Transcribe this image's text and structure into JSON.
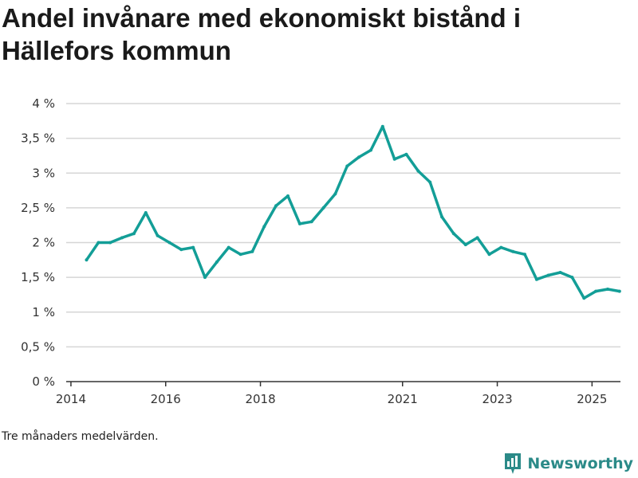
{
  "chart_data": {
    "type": "line",
    "title": "Andel invånare med ekonomiskt bistånd i Hällefors kommun",
    "xlabel": "",
    "ylabel": "",
    "ylim": [
      0,
      4
    ],
    "xlim": [
      2013.9,
      2025.6
    ],
    "yticks": [
      0,
      0.5,
      1,
      1.5,
      2,
      2.5,
      3,
      3.5,
      4
    ],
    "ytick_labels": [
      "0 %",
      "0,5 %",
      "1 %",
      "1,5 %",
      "2 %",
      "2,5 %",
      "3 %",
      "3,5 %",
      "4 %"
    ],
    "xticks": [
      2014,
      2016,
      2018,
      2021,
      2023,
      2025
    ],
    "xtick_labels": [
      "2014",
      "2016",
      "2018",
      "2021",
      "2023",
      "2025"
    ],
    "grid": true,
    "series": [
      {
        "name": "Andel invånare med ekonomiskt bistånd",
        "color": "#139e97",
        "x": [
          2014.33,
          2014.58,
          2014.83,
          2015.08,
          2015.33,
          2015.58,
          2015.83,
          2016.08,
          2016.33,
          2016.58,
          2016.83,
          2017.08,
          2017.33,
          2017.58,
          2017.83,
          2018.08,
          2018.33,
          2018.58,
          2018.83,
          2019.08,
          2019.33,
          2019.58,
          2019.83,
          2020.08,
          2020.33,
          2020.58,
          2020.83,
          2021.08,
          2021.33,
          2021.58,
          2021.83,
          2022.08,
          2022.33,
          2022.58,
          2022.83,
          2023.08,
          2023.33,
          2023.58,
          2023.83,
          2024.08,
          2024.33,
          2024.58,
          2024.83,
          2025.08,
          2025.33,
          2025.58
        ],
        "values": [
          1.75,
          2.0,
          2.0,
          2.07,
          2.13,
          2.43,
          2.1,
          2.0,
          1.9,
          1.93,
          1.5,
          1.72,
          1.93,
          1.83,
          1.87,
          2.23,
          2.53,
          2.67,
          2.27,
          2.3,
          2.5,
          2.7,
          3.1,
          3.23,
          3.33,
          3.67,
          3.2,
          3.27,
          3.03,
          2.87,
          2.37,
          2.13,
          1.97,
          2.07,
          1.83,
          1.93,
          1.87,
          1.83,
          1.47,
          1.53,
          1.57,
          1.5,
          1.2,
          1.3,
          1.33,
          1.3
        ]
      }
    ],
    "colors": {
      "grid": "#d6d6d6",
      "axis": "#333333"
    }
  },
  "footnote": "Tre månaders medelvärden.",
  "brand": {
    "name": "Newsworthy",
    "icon": "newsworthy-chart-icon",
    "color": "#2b8a88"
  }
}
